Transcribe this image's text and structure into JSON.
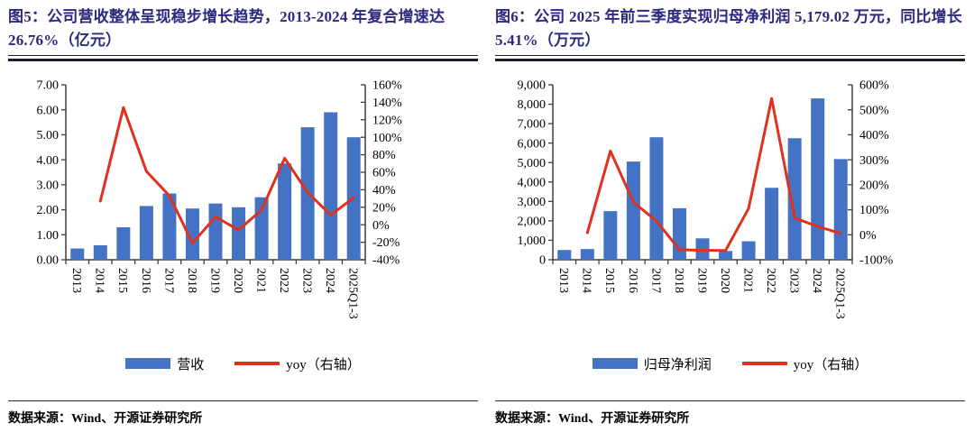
{
  "page": {
    "background": "#ffffff"
  },
  "colors": {
    "bar": "#4472C4",
    "line": "#E0301E",
    "title_text": "#2A2A7F",
    "axis": "#3F3F3F",
    "rule": "#1C1C30"
  },
  "chart_data": [
    {
      "type": "bar",
      "combo": "bar+line dual axis",
      "title": "图5：公司营收整体呈现稳步增长趋势，2013-2024 年复合增速达 26.76%（亿元）",
      "categories": [
        "2013",
        "2014",
        "2015",
        "2016",
        "2017",
        "2018",
        "2019",
        "2020",
        "2021",
        "2022",
        "2023",
        "2024",
        "2025Q1-3"
      ],
      "series": [
        {
          "name": "营收",
          "kind": "bar",
          "axis": "left",
          "color": "#4472C4",
          "values": [
            0.45,
            0.58,
            1.3,
            2.15,
            2.65,
            2.05,
            2.25,
            2.1,
            2.5,
            3.85,
            5.3,
            5.9,
            4.9
          ]
        },
        {
          "name": "yoy（右轴）",
          "kind": "line",
          "axis": "right",
          "color": "#E0301E",
          "values": [
            null,
            27,
            134,
            61,
            33,
            -21,
            9,
            -6,
            17,
            76,
            37,
            11,
            31
          ]
        }
      ],
      "left_axis": {
        "min": 0,
        "max": 7,
        "step": 1,
        "ticks": [
          "0.00",
          "1.00",
          "2.00",
          "3.00",
          "4.00",
          "5.00",
          "6.00",
          "7.00"
        ]
      },
      "right_axis": {
        "min": -40,
        "max": 160,
        "step": 20,
        "ticks": [
          "-40%",
          "-20%",
          "0%",
          "20%",
          "40%",
          "60%",
          "80%",
          "100%",
          "120%",
          "140%",
          "160%"
        ]
      },
      "legend_position": "bottom",
      "grid": "off",
      "source": "数据来源：Wind、开源证券研究所"
    },
    {
      "type": "bar",
      "combo": "bar+line dual axis",
      "title": "图6：公司 2025 年前三季度实现归母净利润 5,179.02 万元，同比增长 5.41%（万元）",
      "categories": [
        "2013",
        "2014",
        "2015",
        "2016",
        "2017",
        "2018",
        "2019",
        "2020",
        "2021",
        "2022",
        "2023",
        "2024",
        "2025Q1-3"
      ],
      "series": [
        {
          "name": "归母净利润",
          "kind": "bar",
          "axis": "left",
          "color": "#4472C4",
          "values": [
            500,
            550,
            2500,
            5050,
            6300,
            2650,
            1100,
            450,
            950,
            3700,
            6250,
            8300,
            5179.02
          ]
        },
        {
          "name": "yoy（右轴）",
          "kind": "line",
          "axis": "right",
          "color": "#E0301E",
          "values": [
            null,
            8,
            335,
            130,
            55,
            -60,
            -62,
            -63,
            105,
            545,
            67,
            33,
            5.41
          ]
        }
      ],
      "left_axis": {
        "min": 0,
        "max": 9000,
        "step": 1000,
        "ticks": [
          "0",
          "1,000",
          "2,000",
          "3,000",
          "4,000",
          "5,000",
          "6,000",
          "7,000",
          "8,000",
          "9,000"
        ]
      },
      "right_axis": {
        "min": -100,
        "max": 600,
        "step": 100,
        "ticks": [
          "-100%",
          "0%",
          "100%",
          "200%",
          "300%",
          "400%",
          "500%",
          "600%"
        ]
      },
      "legend_position": "bottom",
      "grid": "off",
      "source": "数据来源：Wind、开源证券研究所"
    }
  ]
}
